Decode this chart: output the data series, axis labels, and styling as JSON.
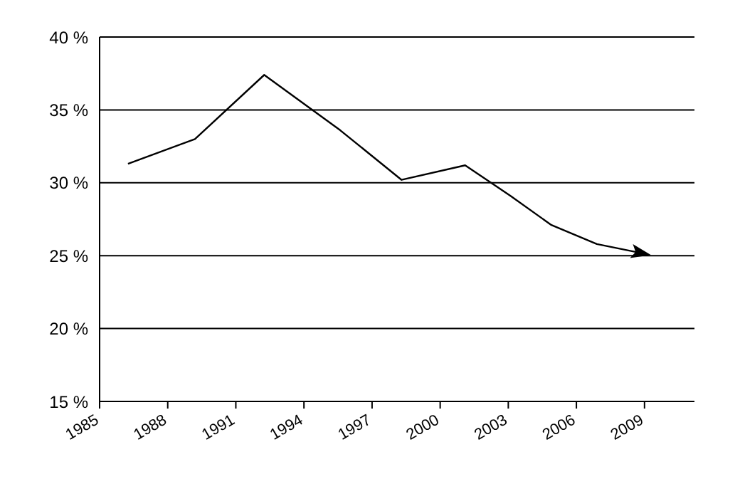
{
  "chart_data": {
    "type": "line",
    "x": [
      1986.25,
      1989.2,
      1992.25,
      1995.6,
      1998.3,
      2001.1,
      2003.1,
      2004.9,
      2006.9,
      2009.1
    ],
    "series": [
      {
        "color": "#000000",
        "values": [
          31.3,
          33.0,
          37.4,
          33.6,
          30.2,
          31.2,
          29.1,
          27.1,
          25.8,
          25.1
        ]
      }
    ],
    "xlim": [
      1985,
      2011.2
    ],
    "xticks": [
      1985,
      1988,
      1991,
      1994,
      1997,
      2000,
      2003,
      2006,
      2009
    ],
    "ylim": [
      15,
      40
    ],
    "yticks": [
      {
        "value": 15,
        "label": "15 %"
      },
      {
        "value": 20,
        "label": "20 %"
      },
      {
        "value": 25,
        "label": "25 %"
      },
      {
        "value": 30,
        "label": "30 %"
      },
      {
        "value": 35,
        "label": "35 %"
      },
      {
        "value": 40,
        "label": "40 %"
      }
    ],
    "grid": "y",
    "marker": "none",
    "line_style": "solid",
    "legend": false
  }
}
